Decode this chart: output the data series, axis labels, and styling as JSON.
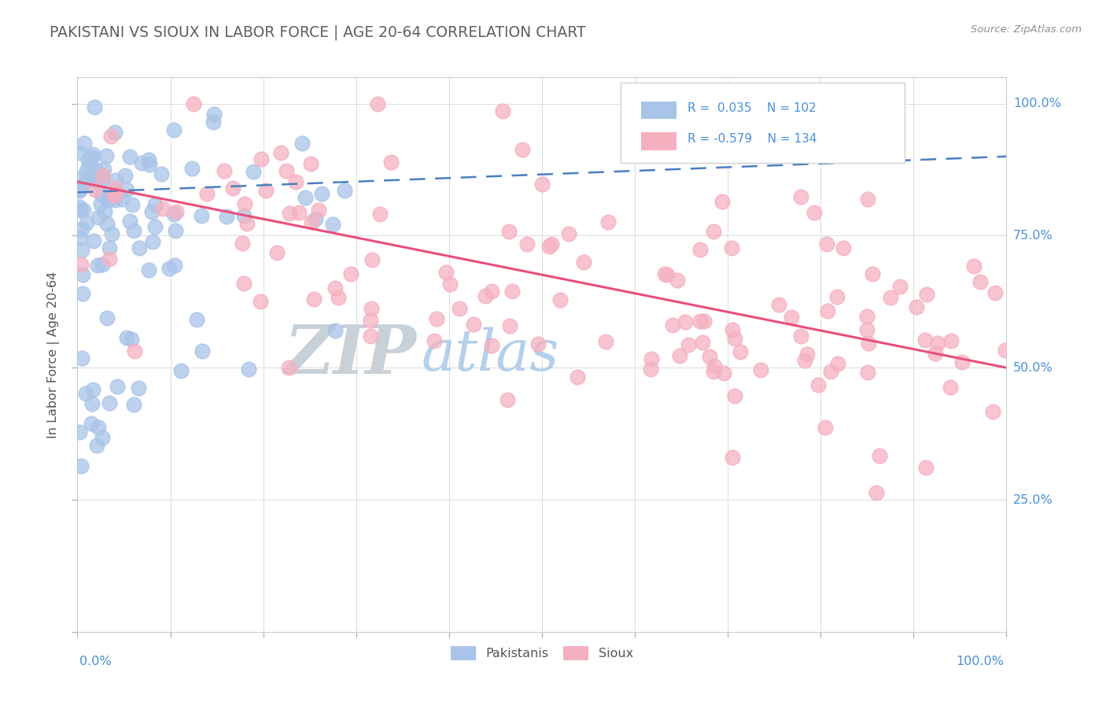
{
  "title": "PAKISTANI VS SIOUX IN LABOR FORCE | AGE 20-64 CORRELATION CHART",
  "source": "Source: ZipAtlas.com",
  "ylabel": "In Labor Force | Age 20-64",
  "legend_pakistanis_R": 0.035,
  "legend_pakistanis_N": 102,
  "legend_sioux_R": -0.579,
  "legend_sioux_N": 134,
  "pakistani_color": "#a8c4e8",
  "sioux_color": "#f5b0c0",
  "pakistani_line_color": "#4a7fc0",
  "sioux_line_color": "#e8507a",
  "background_color": "#ffffff",
  "title_color": "#606060",
  "source_color": "#909090",
  "axis_color": "#4a90d9",
  "legend_text_color": "#4a90d9",
  "watermark_zip_color": "#c8d0d8",
  "watermark_atlas_color": "#a8c8e8",
  "ylabel_color": "#555555"
}
